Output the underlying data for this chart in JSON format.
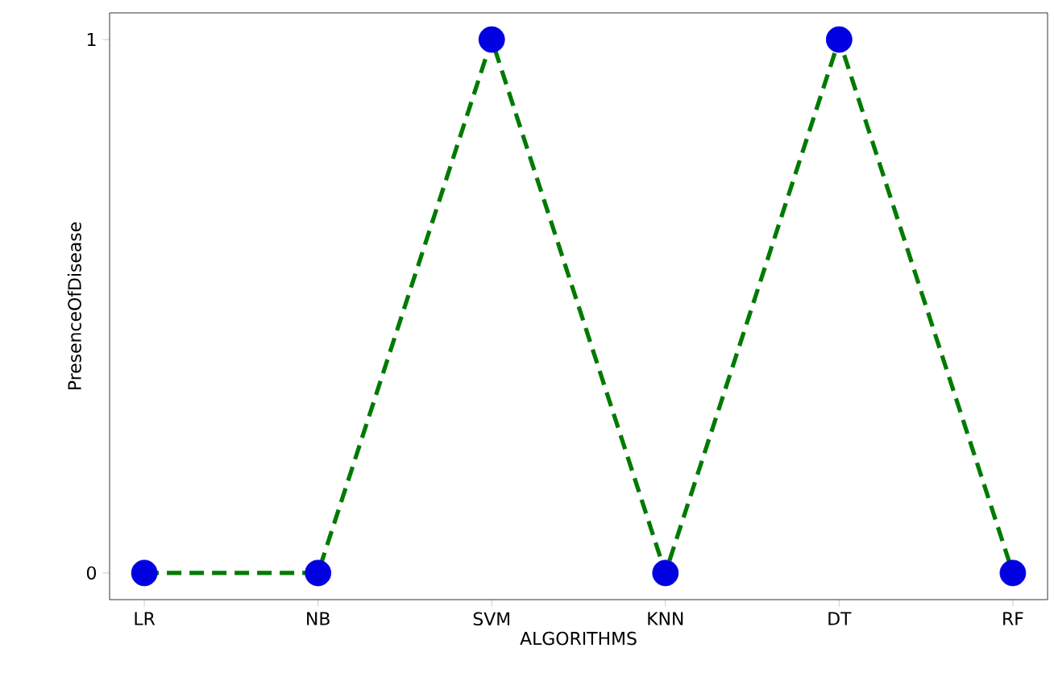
{
  "chart_data": {
    "type": "line",
    "xlabel": "ALGORITHMS",
    "ylabel": "PresenceOfDisease",
    "categories": [
      "LR",
      "NB",
      "SVM",
      "KNN",
      "DT",
      "RF"
    ],
    "series": [
      {
        "color": "#007a00",
        "colors": [
          "#0000e0",
          "#0000e0",
          "#0000e0",
          "#0000e0",
          "#0000e0",
          "#0000e0"
        ],
        "values": [
          0,
          0,
          1,
          0,
          1,
          0
        ]
      }
    ],
    "ylim": [
      -0.05,
      1.05
    ],
    "yticks": [
      0,
      1
    ],
    "marker": "circle",
    "line_style": "dashed"
  }
}
